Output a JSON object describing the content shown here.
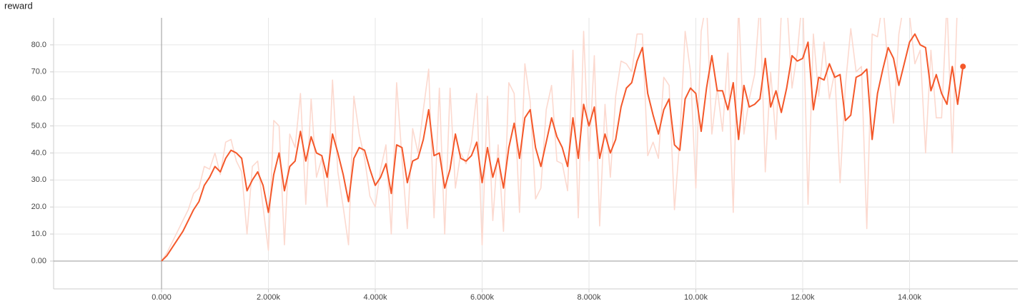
{
  "chart_data": {
    "type": "line",
    "title": "reward",
    "x": [
      0,
      100,
      200,
      300,
      400,
      500,
      600,
      700,
      800,
      900,
      1000,
      1100,
      1200,
      1300,
      1400,
      1500,
      1600,
      1700,
      1800,
      1900,
      2000,
      2100,
      2200,
      2300,
      2400,
      2500,
      2600,
      2700,
      2800,
      2900,
      3000,
      3100,
      3200,
      3300,
      3400,
      3500,
      3600,
      3700,
      3800,
      3900,
      4000,
      4100,
      4200,
      4300,
      4400,
      4500,
      4600,
      4700,
      4800,
      4900,
      5000,
      5100,
      5200,
      5300,
      5400,
      5500,
      5600,
      5700,
      5800,
      5900,
      6000,
      6100,
      6200,
      6300,
      6400,
      6500,
      6600,
      6700,
      6800,
      6900,
      7000,
      7100,
      7200,
      7300,
      7400,
      7500,
      7600,
      7700,
      7800,
      7900,
      8000,
      8100,
      8200,
      8300,
      8400,
      8500,
      8600,
      8700,
      8800,
      8900,
      9000,
      9100,
      9200,
      9300,
      9400,
      9500,
      9600,
      9700,
      9800,
      9900,
      10000,
      10100,
      10200,
      10300,
      10400,
      10500,
      10600,
      10700,
      10800,
      10900,
      11000,
      11100,
      11200,
      11300,
      11400,
      11500,
      11600,
      11700,
      11800,
      11900,
      12000,
      12100,
      12200,
      12300,
      12400,
      12500,
      12600,
      12700,
      12800,
      12900,
      13000,
      13100,
      13200,
      13300,
      13400,
      13500,
      13600,
      13700,
      13800,
      13900,
      14000,
      14100,
      14200,
      14300,
      14400,
      14500,
      14600,
      14700,
      14800,
      14900,
      15000
    ],
    "series": [
      {
        "color": "#fcd9cf",
        "values": [
          0,
          3,
          7,
          11,
          15,
          19,
          25,
          27,
          35,
          34,
          40,
          32,
          44,
          45,
          37,
          33,
          10,
          35,
          37,
          20,
          4,
          52,
          50,
          6,
          47,
          42,
          62,
          21,
          60,
          31,
          38,
          20,
          67,
          33,
          20,
          6,
          61,
          47,
          38,
          24,
          20,
          34,
          43,
          10,
          66,
          38,
          12,
          49,
          40,
          56,
          71,
          16,
          64,
          10,
          64,
          27,
          40,
          36,
          44,
          62,
          6,
          61,
          15,
          43,
          11,
          66,
          62,
          18,
          73,
          59,
          23,
          27,
          56,
          65,
          37,
          36,
          26,
          78,
          16,
          85,
          37,
          76,
          13,
          58,
          31,
          61,
          74,
          73,
          70,
          84,
          84,
          39,
          44,
          38,
          68,
          65,
          19,
          45,
          85,
          70,
          27,
          85,
          96,
          47,
          64,
          48,
          77,
          18,
          95,
          47,
          60,
          69,
          96,
          33,
          70,
          45,
          92,
          97,
          64,
          77,
          99,
          21,
          84,
          61,
          81,
          60,
          70,
          29,
          65,
          86,
          70,
          72,
          12,
          84,
          83,
          96,
          71,
          51,
          84,
          96,
          91,
          73,
          78,
          40,
          78,
          53,
          53,
          96,
          40,
          98,
          90
        ]
      },
      {
        "color": "#f4582a",
        "values": [
          0,
          2,
          5,
          8,
          11,
          15,
          19,
          22,
          28,
          31,
          35,
          33,
          38,
          41,
          40,
          38,
          26,
          30,
          33,
          28,
          18,
          32,
          40,
          26,
          35,
          37,
          48,
          37,
          46,
          40,
          39,
          31,
          47,
          40,
          32,
          22,
          38,
          42,
          41,
          34,
          28,
          31,
          36,
          25,
          43,
          42,
          29,
          37,
          38,
          45,
          56,
          39,
          40,
          27,
          34,
          47,
          38,
          37,
          39,
          44,
          29,
          42,
          31,
          38,
          27,
          42,
          51,
          38,
          53,
          56,
          42,
          35,
          44,
          53,
          46,
          42,
          35,
          53,
          38,
          58,
          50,
          57,
          38,
          47,
          40,
          45,
          57,
          64,
          66,
          74,
          79,
          62,
          54,
          47,
          56,
          60,
          43,
          41,
          60,
          64,
          62,
          48,
          64,
          76,
          63,
          63,
          56,
          66,
          45,
          65,
          57,
          58,
          60,
          75,
          57,
          63,
          55,
          64,
          76,
          74,
          75,
          81,
          56,
          68,
          67,
          73,
          68,
          69,
          52,
          54,
          68,
          69,
          71,
          45,
          62,
          71,
          79,
          75,
          65,
          73,
          81,
          84,
          80,
          79,
          63,
          69,
          62,
          58,
          72,
          58,
          72
        ]
      }
    ],
    "xlim": [
      -2020,
      16027
    ],
    "ylim": [
      -10.3,
      90
    ],
    "xticks": [
      {
        "value": 0,
        "label": "0.000"
      },
      {
        "value": 2000,
        "label": "2.000k"
      },
      {
        "value": 4000,
        "label": "4.000k"
      },
      {
        "value": 6000,
        "label": "6.000k"
      },
      {
        "value": 8000,
        "label": "8.000k"
      },
      {
        "value": 10000,
        "label": "10.00k"
      },
      {
        "value": 12000,
        "label": "12.00k"
      },
      {
        "value": 14000,
        "label": "14.00k"
      }
    ],
    "yticks": [
      {
        "value": 0,
        "label": "0.00"
      },
      {
        "value": 10,
        "label": "10.0"
      },
      {
        "value": 20,
        "label": "20.0"
      },
      {
        "value": 30,
        "label": "30.0"
      },
      {
        "value": 40,
        "label": "40.0"
      },
      {
        "value": 50,
        "label": "50.0"
      },
      {
        "value": 60,
        "label": "60.0"
      },
      {
        "value": 70,
        "label": "70.0"
      },
      {
        "value": 80,
        "label": "80.0"
      }
    ],
    "grid": true
  }
}
